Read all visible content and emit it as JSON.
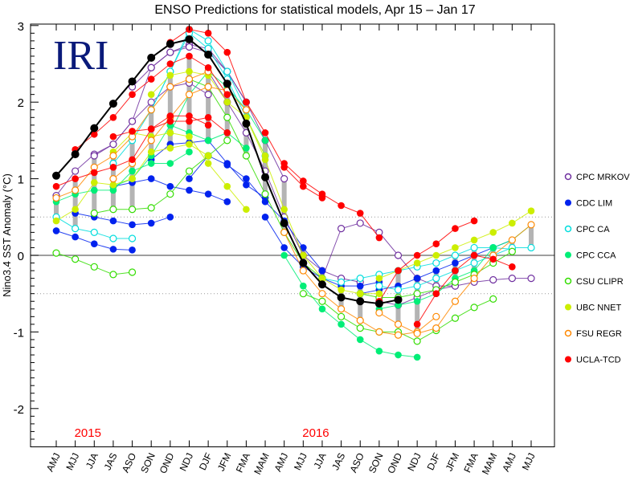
{
  "chart_data": {
    "type": "line",
    "title": "ENSO Predictions for statistical models, Apr 15 – Jan 17",
    "ylabel": "Nino3.4 SST Anomaly (°C)",
    "xlabel": "",
    "logo": "IRI",
    "ylim": [
      -2.5,
      3
    ],
    "yticks": [
      -2,
      -1,
      0,
      1,
      2,
      3
    ],
    "reference_lines": [
      0.5,
      -0.5
    ],
    "grid": false,
    "legend_position": "right",
    "categories": [
      "AMJ",
      "MJJ",
      "JJA",
      "JAS",
      "ASO",
      "SON",
      "OND",
      "NDJ",
      "DJF",
      "JFM",
      "FMA",
      "MAM",
      "AMJ",
      "MJJ",
      "JJA",
      "JAS",
      "ASO",
      "SON",
      "OND",
      "NDJ",
      "DJF",
      "JFM",
      "FMA",
      "MAM",
      "AMJ",
      "MJJ"
    ],
    "year_labels": [
      {
        "label": "2015",
        "category_index": 2
      },
      {
        "label": "2016",
        "category_index": 14
      }
    ],
    "observed": {
      "color": "#000000",
      "start": 0,
      "values": [
        1.04,
        1.32,
        1.66,
        1.98,
        2.27,
        2.58,
        2.76,
        2.82,
        2.62,
        2.24,
        1.72,
        1.02,
        0.42,
        -0.1,
        -0.38,
        -0.55,
        -0.6,
        -0.63,
        -0.58
      ]
    },
    "series": [
      {
        "name": "CPC MRKOV",
        "color": "#7030a0",
        "marker": "open",
        "runs": [
          {
            "start": 0,
            "values": [
              0.78,
              1.1,
              1.32,
              1.45,
              1.75,
              2.0,
              2.2,
              2.25,
              2.1
            ]
          },
          {
            "start": 2,
            "values": [
              1.3,
              1.45,
              1.75,
              2.45,
              2.65,
              2.75,
              2.7,
              2.4,
              2.0
            ]
          },
          {
            "start": 4,
            "values": [
              2.2,
              2.45,
              2.65,
              2.72,
              2.65,
              2.4,
              2.0,
              1.5,
              1.0
            ]
          },
          {
            "start": 8,
            "values": [
              2.4,
              2.0,
              1.6,
              1.1,
              0.5,
              0.0,
              -0.2,
              -0.3,
              -0.35
            ]
          },
          {
            "start": 14,
            "values": [
              -0.3,
              0.35,
              0.42,
              0.3,
              0.0,
              -0.3,
              -0.4,
              -0.4
            ]
          },
          {
            "start": 17,
            "values": [
              -0.6,
              -0.65,
              -0.55,
              -0.45,
              -0.4,
              -0.35,
              -0.32,
              -0.3,
              -0.3
            ]
          }
        ]
      },
      {
        "name": "CDC LIM",
        "color": "#0022ee",
        "marker": "filled",
        "runs": [
          {
            "start": 0,
            "values": [
              0.32,
              0.24,
              0.15,
              0.08,
              0.07
            ]
          },
          {
            "start": 1,
            "values": [
              0.55,
              0.5,
              0.45,
              0.4,
              0.42,
              0.5
            ]
          },
          {
            "start": 3,
            "values": [
              0.9,
              0.95,
              1.0,
              0.9,
              0.85,
              0.8,
              0.7
            ]
          },
          {
            "start": 5,
            "values": [
              1.25,
              1.45,
              1.47,
              1.5,
              1.2,
              0.92,
              0.75
            ]
          },
          {
            "start": 7,
            "values": [
              1.0,
              1.3,
              1.18,
              1.0,
              0.7,
              0.45,
              0.1,
              -0.2
            ]
          },
          {
            "start": 11,
            "values": [
              0.5,
              0.1,
              -0.15,
              -0.3,
              -0.4,
              -0.4,
              -0.35
            ]
          },
          {
            "start": 16,
            "values": [
              -0.5,
              -0.45,
              -0.4,
              -0.3,
              -0.2,
              -0.1,
              0.0,
              0.1,
              0.2
            ]
          }
        ]
      },
      {
        "name": "CPC CA",
        "color": "#00dddd",
        "marker": "open",
        "runs": [
          {
            "start": 0,
            "values": [
              0.5,
              0.35,
              0.3,
              0.22,
              0.22
            ]
          },
          {
            "start": 3,
            "values": [
              1.2,
              1.5,
              1.9,
              2.4,
              2.95,
              2.8,
              2.4,
              1.9
            ]
          },
          {
            "start": 5,
            "values": [
              1.9,
              2.4,
              2.9,
              2.7,
              2.3,
              1.8,
              1.3
            ]
          },
          {
            "start": 14,
            "values": [
              -0.3,
              -0.35,
              -0.3,
              -0.25,
              -0.2,
              -0.15,
              -0.1,
              0.0,
              0.1,
              0.1,
              0.08
            ]
          },
          {
            "start": 17,
            "values": [
              -0.4,
              -0.45,
              -0.4,
              -0.3,
              -0.2,
              -0.1,
              0.0,
              0.1,
              0.1
            ]
          }
        ]
      },
      {
        "name": "CPC CCA",
        "color": "#00ee77",
        "marker": "filled",
        "runs": [
          {
            "start": 0,
            "values": [
              0.7,
              0.8,
              0.85,
              0.85,
              1.1,
              1.2,
              1.2,
              1.35
            ]
          },
          {
            "start": 3,
            "values": [
              0.9,
              1.0,
              1.3,
              1.7,
              1.6,
              1.5,
              1.6,
              1.4
            ]
          },
          {
            "start": 6,
            "values": [
              1.6,
              2.1,
              2.4,
              2.2,
              1.9,
              1.5
            ]
          },
          {
            "start": 12,
            "values": [
              0.0,
              -0.4,
              -0.7,
              -0.9,
              -1.1,
              -1.25,
              -1.3,
              -1.33
            ]
          },
          {
            "start": 17,
            "values": [
              -0.7,
              -0.65,
              -0.6,
              -0.5,
              -0.3,
              -0.2,
              0.1,
              0.2,
              0.4
            ]
          }
        ]
      },
      {
        "name": "CSU CLIPR",
        "color": "#33dd00",
        "marker": "open",
        "runs": [
          {
            "start": 0,
            "values": [
              0.03,
              -0.05,
              -0.15,
              -0.25,
              -0.22
            ]
          },
          {
            "start": 2,
            "values": [
              0.55,
              0.6,
              0.6,
              0.62,
              0.8,
              1.1,
              1.3,
              1.5
            ]
          },
          {
            "start": 7,
            "values": [
              2.3,
              2.2,
              1.8,
              1.3,
              0.8,
              0.3,
              -0.1,
              -0.3
            ]
          },
          {
            "start": 13,
            "values": [
              -0.5,
              -0.6,
              -0.8,
              -0.95,
              -1.0,
              -1.0,
              -1.12,
              -0.98,
              -0.82,
              -0.68,
              -0.57
            ]
          },
          {
            "start": 16,
            "values": [
              -0.5,
              -0.55,
              -0.55,
              -0.5,
              -0.45,
              -0.35,
              -0.25,
              -0.1,
              0.05
            ]
          }
        ]
      },
      {
        "name": "UBC NNET",
        "color": "#ccee00",
        "marker": "filled",
        "runs": [
          {
            "start": 0,
            "values": [
              0.45,
              0.6,
              0.95,
              0.92,
              1.0,
              1.35,
              1.4,
              1.45,
              1.3
            ]
          },
          {
            "start": 3,
            "values": [
              1.35,
              1.6,
              1.55,
              1.6,
              1.55,
              1.2,
              0.9,
              0.6
            ]
          },
          {
            "start": 5,
            "values": [
              2.1,
              2.35,
              2.4,
              2.35,
              2.0,
              1.8,
              1.3
            ]
          },
          {
            "start": 10,
            "values": [
              1.8,
              1.25,
              0.6,
              0.0,
              -0.3,
              -0.45,
              -0.5,
              -0.5
            ]
          },
          {
            "start": 17,
            "values": [
              -0.3,
              -0.2,
              -0.1,
              0.0,
              0.1,
              0.2,
              0.3,
              0.42,
              0.58
            ]
          }
        ]
      },
      {
        "name": "FSU REGR",
        "color": "#ff8800",
        "marker": "open",
        "runs": [
          {
            "start": 0,
            "values": [
              0.75,
              0.85,
              1.15,
              1.3,
              1.55,
              1.9,
              2.2,
              2.3,
              2.4
            ]
          },
          {
            "start": 3,
            "values": [
              1.0,
              1.2,
              1.5,
              1.8,
              2.1,
              2.2,
              2.15,
              1.9
            ]
          },
          {
            "start": 12,
            "values": [
              0.3,
              -0.2,
              -0.5,
              -0.7,
              -0.85,
              -1.0,
              -1.04,
              -1.0,
              -0.8
            ]
          },
          {
            "start": 17,
            "values": [
              -0.75,
              -0.9,
              -1.02,
              -0.95,
              -0.6,
              -0.3,
              0.0,
              0.2,
              0.4
            ]
          }
        ]
      },
      {
        "name": "UCLA-TCD",
        "color": "#ff0000",
        "marker": "filled",
        "runs": [
          {
            "start": 0,
            "values": [
              0.9,
              1.0,
              1.08,
              1.15,
              1.25,
              1.65,
              1.82,
              1.82,
              1.7
            ]
          },
          {
            "start": 1,
            "values": [
              1.38,
              1.58,
              1.8,
              2.1,
              2.3,
              2.5,
              2.6,
              2.45,
              2.1
            ]
          },
          {
            "start": 3,
            "values": [
              1.55,
              1.62,
              1.65,
              1.75,
              1.75,
              1.8,
              1.6
            ]
          },
          {
            "start": 6,
            "values": [
              2.78,
              2.95,
              2.9,
              2.65,
              2.0,
              1.6,
              1.15,
              0.9,
              0.75
            ]
          },
          {
            "start": 12,
            "values": [
              1.2,
              0.97,
              0.8,
              0.65,
              0.55,
              0.23
            ]
          },
          {
            "start": 17,
            "values": [
              -0.6,
              -0.2,
              0.0,
              0.15,
              0.35,
              0.45
            ]
          },
          {
            "start": 19,
            "values": [
              -0.9,
              -0.5,
              -0.2,
              0.0,
              -0.05,
              -0.15
            ]
          }
        ]
      }
    ]
  }
}
